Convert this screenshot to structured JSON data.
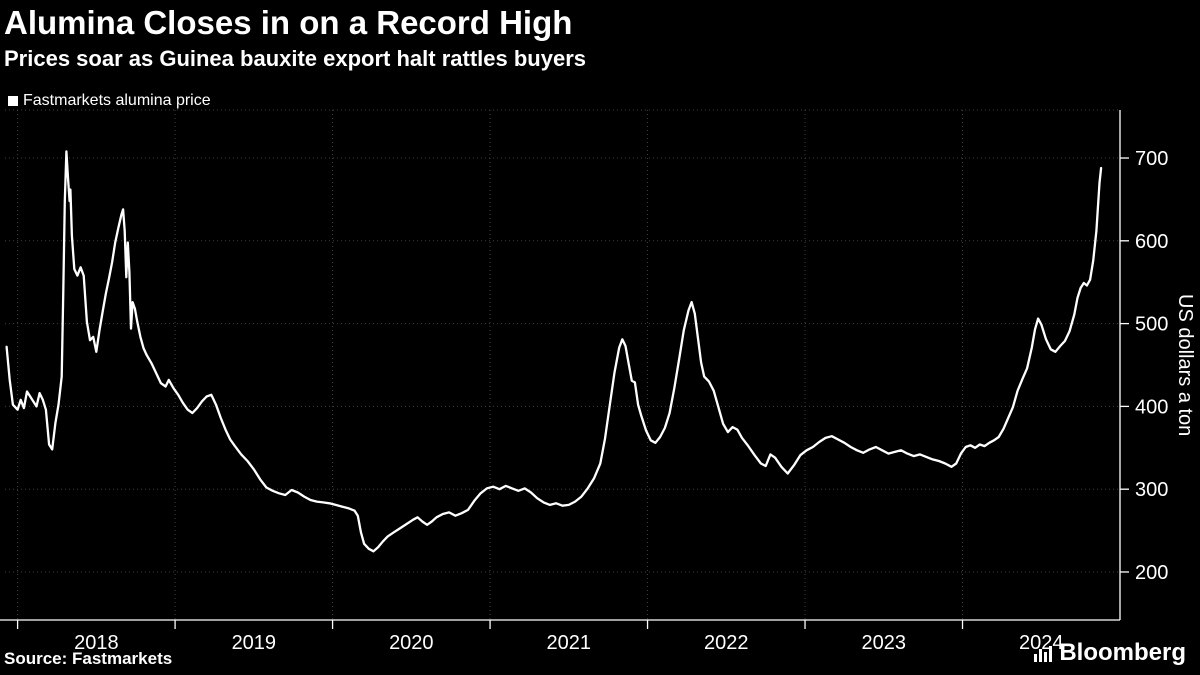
{
  "header": {
    "title": "Alumina Closes in on a Record High",
    "subtitle": "Prices soar as Guinea bauxite export halt rattles buyers"
  },
  "legend": {
    "label": "Fastmarkets alumina price"
  },
  "footer": {
    "source": "Source: Fastmarkets",
    "brand": "Bloomberg"
  },
  "colors": {
    "background": "#000000",
    "foreground": "#ffffff",
    "grid": "#404040",
    "line": "#ffffff"
  },
  "chart_data": {
    "type": "line",
    "title": "Alumina Closes in on a Record High",
    "subtitle": "Prices soar as Guinea bauxite export halt rattles buyers",
    "ylabel": "US dollars a ton",
    "yticks": [
      200,
      300,
      400,
      500,
      600,
      700
    ],
    "ylim": [
      142,
      758
    ],
    "xticks": [
      2018,
      2019,
      2020,
      2021,
      2022,
      2023,
      2024
    ],
    "xlim": [
      2017.92,
      2025.0
    ],
    "grid": "dotted",
    "legend_position": "top-left",
    "series": [
      {
        "name": "Fastmarkets alumina price",
        "color": "#ffffff",
        "points": [
          [
            2017.93,
            472
          ],
          [
            2017.95,
            432
          ],
          [
            2017.97,
            402
          ],
          [
            2018.0,
            396
          ],
          [
            2018.02,
            408
          ],
          [
            2018.04,
            398
          ],
          [
            2018.06,
            418
          ],
          [
            2018.08,
            412
          ],
          [
            2018.1,
            406
          ],
          [
            2018.12,
            400
          ],
          [
            2018.14,
            416
          ],
          [
            2018.16,
            408
          ],
          [
            2018.18,
            396
          ],
          [
            2018.2,
            354
          ],
          [
            2018.22,
            348
          ],
          [
            2018.24,
            380
          ],
          [
            2018.26,
            402
          ],
          [
            2018.28,
            436
          ],
          [
            2018.29,
            540
          ],
          [
            2018.3,
            648
          ],
          [
            2018.31,
            708
          ],
          [
            2018.32,
            676
          ],
          [
            2018.33,
            648
          ],
          [
            2018.335,
            662
          ],
          [
            2018.345,
            606
          ],
          [
            2018.36,
            566
          ],
          [
            2018.38,
            558
          ],
          [
            2018.4,
            568
          ],
          [
            2018.42,
            558
          ],
          [
            2018.44,
            502
          ],
          [
            2018.46,
            480
          ],
          [
            2018.48,
            484
          ],
          [
            2018.5,
            466
          ],
          [
            2018.52,
            492
          ],
          [
            2018.54,
            514
          ],
          [
            2018.56,
            536
          ],
          [
            2018.58,
            554
          ],
          [
            2018.6,
            574
          ],
          [
            2018.62,
            598
          ],
          [
            2018.64,
            616
          ],
          [
            2018.66,
            632
          ],
          [
            2018.67,
            638
          ],
          [
            2018.68,
            612
          ],
          [
            2018.69,
            556
          ],
          [
            2018.7,
            598
          ],
          [
            2018.71,
            562
          ],
          [
            2018.72,
            494
          ],
          [
            2018.73,
            526
          ],
          [
            2018.745,
            518
          ],
          [
            2018.76,
            502
          ],
          [
            2018.78,
            484
          ],
          [
            2018.8,
            470
          ],
          [
            2018.82,
            462
          ],
          [
            2018.85,
            452
          ],
          [
            2018.88,
            440
          ],
          [
            2018.91,
            428
          ],
          [
            2018.94,
            424
          ],
          [
            2018.96,
            432
          ],
          [
            2018.99,
            422
          ],
          [
            2019.02,
            414
          ],
          [
            2019.05,
            404
          ],
          [
            2019.08,
            396
          ],
          [
            2019.11,
            392
          ],
          [
            2019.14,
            398
          ],
          [
            2019.17,
            406
          ],
          [
            2019.2,
            412
          ],
          [
            2019.23,
            414
          ],
          [
            2019.26,
            402
          ],
          [
            2019.29,
            386
          ],
          [
            2019.32,
            372
          ],
          [
            2019.35,
            360
          ],
          [
            2019.38,
            352
          ],
          [
            2019.42,
            342
          ],
          [
            2019.46,
            334
          ],
          [
            2019.5,
            324
          ],
          [
            2019.54,
            312
          ],
          [
            2019.58,
            302
          ],
          [
            2019.62,
            298
          ],
          [
            2019.66,
            295
          ],
          [
            2019.7,
            293
          ],
          [
            2019.74,
            299
          ],
          [
            2019.78,
            296
          ],
          [
            2019.82,
            291
          ],
          [
            2019.86,
            287
          ],
          [
            2019.9,
            285
          ],
          [
            2019.94,
            284
          ],
          [
            2019.98,
            283
          ],
          [
            2020.02,
            281
          ],
          [
            2020.06,
            279
          ],
          [
            2020.1,
            277
          ],
          [
            2020.14,
            274
          ],
          [
            2020.16,
            268
          ],
          [
            2020.18,
            248
          ],
          [
            2020.2,
            234
          ],
          [
            2020.23,
            228
          ],
          [
            2020.26,
            225
          ],
          [
            2020.29,
            230
          ],
          [
            2020.32,
            237
          ],
          [
            2020.35,
            243
          ],
          [
            2020.39,
            248
          ],
          [
            2020.43,
            253
          ],
          [
            2020.47,
            258
          ],
          [
            2020.51,
            263
          ],
          [
            2020.54,
            266
          ],
          [
            2020.57,
            261
          ],
          [
            2020.6,
            257
          ],
          [
            2020.63,
            261
          ],
          [
            2020.66,
            266
          ],
          [
            2020.7,
            270
          ],
          [
            2020.74,
            272
          ],
          [
            2020.78,
            268
          ],
          [
            2020.82,
            271
          ],
          [
            2020.86,
            275
          ],
          [
            2020.9,
            286
          ],
          [
            2020.94,
            295
          ],
          [
            2020.98,
            301
          ],
          [
            2021.02,
            303
          ],
          [
            2021.06,
            300
          ],
          [
            2021.1,
            304
          ],
          [
            2021.14,
            301
          ],
          [
            2021.18,
            298
          ],
          [
            2021.22,
            301
          ],
          [
            2021.26,
            296
          ],
          [
            2021.3,
            289
          ],
          [
            2021.34,
            284
          ],
          [
            2021.38,
            281
          ],
          [
            2021.42,
            283
          ],
          [
            2021.46,
            280
          ],
          [
            2021.5,
            281
          ],
          [
            2021.54,
            285
          ],
          [
            2021.58,
            291
          ],
          [
            2021.62,
            301
          ],
          [
            2021.66,
            313
          ],
          [
            2021.7,
            331
          ],
          [
            2021.73,
            361
          ],
          [
            2021.76,
            401
          ],
          [
            2021.79,
            441
          ],
          [
            2021.82,
            471
          ],
          [
            2021.84,
            481
          ],
          [
            2021.86,
            473
          ],
          [
            2021.88,
            452
          ],
          [
            2021.9,
            431
          ],
          [
            2021.92,
            429
          ],
          [
            2021.94,
            402
          ],
          [
            2021.96,
            389
          ],
          [
            2021.99,
            371
          ],
          [
            2022.02,
            359
          ],
          [
            2022.05,
            356
          ],
          [
            2022.08,
            363
          ],
          [
            2022.11,
            374
          ],
          [
            2022.14,
            392
          ],
          [
            2022.17,
            422
          ],
          [
            2022.2,
            456
          ],
          [
            2022.23,
            492
          ],
          [
            2022.26,
            516
          ],
          [
            2022.28,
            526
          ],
          [
            2022.3,
            512
          ],
          [
            2022.32,
            483
          ],
          [
            2022.34,
            453
          ],
          [
            2022.36,
            436
          ],
          [
            2022.39,
            430
          ],
          [
            2022.42,
            419
          ],
          [
            2022.45,
            399
          ],
          [
            2022.48,
            379
          ],
          [
            2022.51,
            369
          ],
          [
            2022.54,
            375
          ],
          [
            2022.57,
            372
          ],
          [
            2022.6,
            362
          ],
          [
            2022.64,
            352
          ],
          [
            2022.68,
            341
          ],
          [
            2022.72,
            331
          ],
          [
            2022.75,
            328
          ],
          [
            2022.78,
            342
          ],
          [
            2022.81,
            338
          ],
          [
            2022.85,
            327
          ],
          [
            2022.89,
            319
          ],
          [
            2022.93,
            329
          ],
          [
            2022.97,
            341
          ],
          [
            2023.01,
            347
          ],
          [
            2023.05,
            351
          ],
          [
            2023.09,
            357
          ],
          [
            2023.13,
            362
          ],
          [
            2023.17,
            364
          ],
          [
            2023.21,
            360
          ],
          [
            2023.25,
            356
          ],
          [
            2023.29,
            351
          ],
          [
            2023.33,
            347
          ],
          [
            2023.37,
            344
          ],
          [
            2023.41,
            348
          ],
          [
            2023.45,
            351
          ],
          [
            2023.49,
            347
          ],
          [
            2023.53,
            343
          ],
          [
            2023.57,
            345
          ],
          [
            2023.61,
            347
          ],
          [
            2023.65,
            343
          ],
          [
            2023.69,
            340
          ],
          [
            2023.73,
            342
          ],
          [
            2023.77,
            339
          ],
          [
            2023.81,
            336
          ],
          [
            2023.85,
            334
          ],
          [
            2023.89,
            331
          ],
          [
            2023.93,
            327
          ],
          [
            2023.96,
            331
          ],
          [
            2023.99,
            343
          ],
          [
            2024.02,
            351
          ],
          [
            2024.05,
            353
          ],
          [
            2024.08,
            350
          ],
          [
            2024.11,
            354
          ],
          [
            2024.14,
            352
          ],
          [
            2024.17,
            356
          ],
          [
            2024.2,
            359
          ],
          [
            2024.23,
            363
          ],
          [
            2024.26,
            373
          ],
          [
            2024.29,
            386
          ],
          [
            2024.32,
            399
          ],
          [
            2024.35,
            419
          ],
          [
            2024.38,
            433
          ],
          [
            2024.41,
            446
          ],
          [
            2024.44,
            471
          ],
          [
            2024.46,
            493
          ],
          [
            2024.48,
            506
          ],
          [
            2024.5,
            499
          ],
          [
            2024.53,
            481
          ],
          [
            2024.56,
            469
          ],
          [
            2024.59,
            466
          ],
          [
            2024.62,
            473
          ],
          [
            2024.65,
            479
          ],
          [
            2024.68,
            491
          ],
          [
            2024.71,
            511
          ],
          [
            2024.73,
            531
          ],
          [
            2024.75,
            543
          ],
          [
            2024.77,
            549
          ],
          [
            2024.79,
            546
          ],
          [
            2024.81,
            553
          ],
          [
            2024.83,
            576
          ],
          [
            2024.85,
            612
          ],
          [
            2024.86,
            642
          ],
          [
            2024.87,
            670
          ],
          [
            2024.88,
            688
          ]
        ]
      }
    ]
  }
}
